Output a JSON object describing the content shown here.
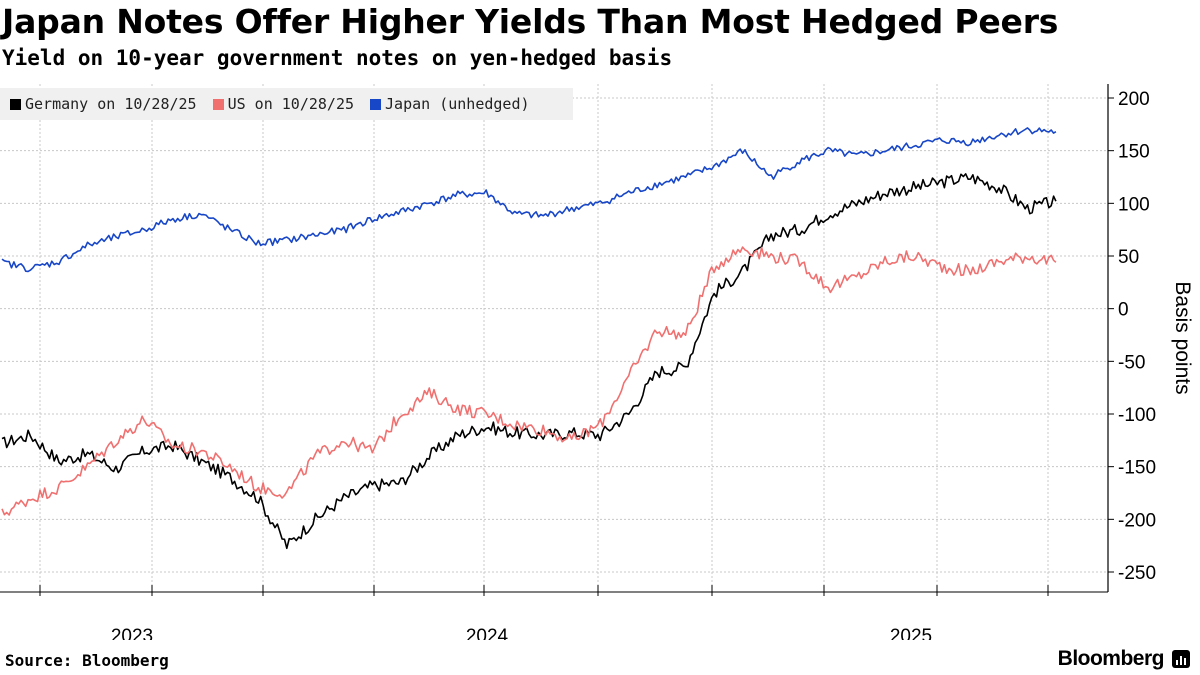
{
  "title": "Japan Notes Offer Higher Yields Than Most Hedged Peers",
  "subtitle": "Yield on 10-year government notes on yen-hedged basis",
  "source": "Source: Bloomberg",
  "brand": "Bloomberg",
  "colors": {
    "germany": "#000000",
    "us": "#f07070",
    "japan": "#1746c7",
    "grid": "#c8c8c8"
  },
  "chart_data": {
    "type": "line",
    "title": "Japan Notes Offer Higher Yields Than Most Hedged Peers",
    "subtitle": "Yield on 10-year government notes on yen-hedged basis",
    "xlabel": "",
    "ylabel": "Basis points",
    "ylim": [
      -250,
      200
    ],
    "y_ticks": [
      200,
      150,
      100,
      50,
      0,
      -50,
      -100,
      -150,
      -200,
      -250
    ],
    "x_tick_labels": [
      "2023",
      "2024",
      "2025"
    ],
    "x_range": [
      "2022-09",
      "2025-11"
    ],
    "grid": true,
    "legend_position": "top-left",
    "series": [
      {
        "name": "Germany on 10/28/25",
        "color": "#000000",
        "points": [
          [
            "2022-09",
            -128
          ],
          [
            "2022-10",
            -120
          ],
          [
            "2022-11",
            -145
          ],
          [
            "2022-12",
            -138
          ],
          [
            "2023-01",
            -152
          ],
          [
            "2023-02",
            -135
          ],
          [
            "2023-03",
            -130
          ],
          [
            "2023-04",
            -145
          ],
          [
            "2023-05",
            -160
          ],
          [
            "2023-06",
            -180
          ],
          [
            "2023-07",
            -225
          ],
          [
            "2023-08",
            -200
          ],
          [
            "2023-09",
            -180
          ],
          [
            "2023-10",
            -168
          ],
          [
            "2023-11",
            -165
          ],
          [
            "2023-12",
            -140
          ],
          [
            "2024-01",
            -120
          ],
          [
            "2024-02",
            -112
          ],
          [
            "2024-03",
            -118
          ],
          [
            "2024-04",
            -120
          ],
          [
            "2024-05",
            -118
          ],
          [
            "2024-06",
            -120
          ],
          [
            "2024-07",
            -100
          ],
          [
            "2024-08",
            -60
          ],
          [
            "2024-09",
            -55
          ],
          [
            "2024-10",
            15
          ],
          [
            "2024-11",
            35
          ],
          [
            "2024-12",
            70
          ],
          [
            "2025-01",
            75
          ],
          [
            "2025-02",
            90
          ],
          [
            "2025-03",
            100
          ],
          [
            "2025-04",
            110
          ],
          [
            "2025-05",
            115
          ],
          [
            "2025-06",
            120
          ],
          [
            "2025-07",
            125
          ],
          [
            "2025-08",
            115
          ],
          [
            "2025-09",
            95
          ],
          [
            "2025-10",
            102
          ]
        ]
      },
      {
        "name": "US on 10/28/25",
        "color": "#f07070",
        "points": [
          [
            "2022-09",
            -195
          ],
          [
            "2022-10",
            -180
          ],
          [
            "2022-11",
            -170
          ],
          [
            "2022-12",
            -150
          ],
          [
            "2023-01",
            -125
          ],
          [
            "2023-02",
            -105
          ],
          [
            "2023-03",
            -130
          ],
          [
            "2023-04",
            -135
          ],
          [
            "2023-05",
            -150
          ],
          [
            "2023-06",
            -170
          ],
          [
            "2023-07",
            -175
          ],
          [
            "2023-08",
            -140
          ],
          [
            "2023-09",
            -125
          ],
          [
            "2023-10",
            -135
          ],
          [
            "2023-11",
            -100
          ],
          [
            "2023-12",
            -80
          ],
          [
            "2024-01",
            -95
          ],
          [
            "2024-02",
            -100
          ],
          [
            "2024-03",
            -110
          ],
          [
            "2024-04",
            -115
          ],
          [
            "2024-05",
            -125
          ],
          [
            "2024-06",
            -110
          ],
          [
            "2024-07",
            -65
          ],
          [
            "2024-08",
            -20
          ],
          [
            "2024-09",
            -25
          ],
          [
            "2024-10",
            40
          ],
          [
            "2024-11",
            58
          ],
          [
            "2024-12",
            50
          ],
          [
            "2025-01",
            45
          ],
          [
            "2025-02",
            20
          ],
          [
            "2025-03",
            30
          ],
          [
            "2025-04",
            45
          ],
          [
            "2025-05",
            50
          ],
          [
            "2025-06",
            40
          ],
          [
            "2025-07",
            35
          ],
          [
            "2025-08",
            45
          ],
          [
            "2025-09",
            50
          ],
          [
            "2025-10",
            44
          ]
        ]
      },
      {
        "name": "Japan (unhedged)",
        "color": "#1746c7",
        "points": [
          [
            "2022-09",
            44
          ],
          [
            "2022-10",
            38
          ],
          [
            "2022-11",
            45
          ],
          [
            "2022-12",
            60
          ],
          [
            "2023-01",
            68
          ],
          [
            "2023-02",
            75
          ],
          [
            "2023-03",
            85
          ],
          [
            "2023-04",
            90
          ],
          [
            "2023-05",
            75
          ],
          [
            "2023-06",
            62
          ],
          [
            "2023-07",
            65
          ],
          [
            "2023-08",
            70
          ],
          [
            "2023-09",
            75
          ],
          [
            "2023-10",
            85
          ],
          [
            "2023-11",
            92
          ],
          [
            "2023-12",
            100
          ],
          [
            "2024-01",
            108
          ],
          [
            "2024-02",
            110
          ],
          [
            "2024-03",
            90
          ],
          [
            "2024-04",
            88
          ],
          [
            "2024-05",
            95
          ],
          [
            "2024-06",
            100
          ],
          [
            "2024-07",
            110
          ],
          [
            "2024-08",
            118
          ],
          [
            "2024-09",
            125
          ],
          [
            "2024-10",
            135
          ],
          [
            "2024-11",
            150
          ],
          [
            "2024-12",
            125
          ],
          [
            "2025-01",
            140
          ],
          [
            "2025-02",
            150
          ],
          [
            "2025-03",
            145
          ],
          [
            "2025-04",
            150
          ],
          [
            "2025-05",
            155
          ],
          [
            "2025-06",
            160
          ],
          [
            "2025-07",
            158
          ],
          [
            "2025-08",
            165
          ],
          [
            "2025-09",
            170
          ],
          [
            "2025-10",
            168
          ]
        ]
      }
    ]
  },
  "legend": [
    {
      "label": "Germany on 10/28/25",
      "color": "#000000"
    },
    {
      "label": "US on 10/28/25",
      "color": "#f07070"
    },
    {
      "label": "Japan (unhedged)",
      "color": "#1746c7"
    }
  ]
}
